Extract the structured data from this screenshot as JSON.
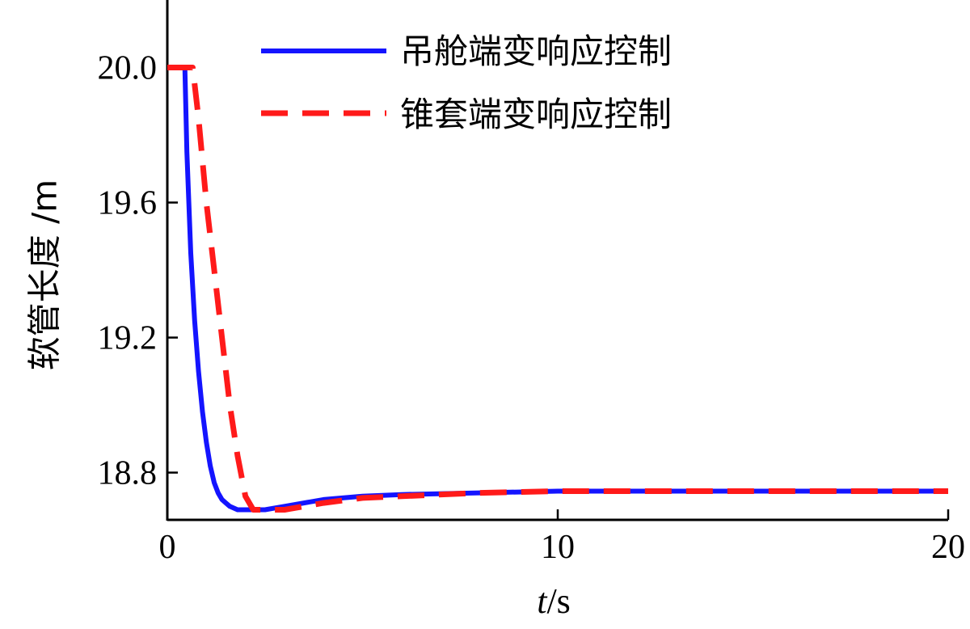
{
  "chart_data": {
    "type": "line",
    "title": "",
    "xlabel": {
      "var": "t",
      "sep": "/",
      "unit": "s"
    },
    "ylabel": "软管长度 /m",
    "xlim": [
      0,
      20
    ],
    "ylim": [
      18.66,
      20.2
    ],
    "xticks": [
      0,
      10,
      20
    ],
    "xtick_labels": [
      "0",
      "10",
      "20"
    ],
    "yticks": [
      18.8,
      19.2,
      19.6,
      20.0
    ],
    "ytick_labels": [
      "18.8",
      "19.2",
      "19.6",
      "20.0"
    ],
    "grid": false,
    "legend_position": "top-right",
    "series": [
      {
        "name": "吊舱端变响应控制",
        "color": "#1414ff",
        "style": "solid",
        "x": [
          0,
          0.45,
          0.5,
          0.6,
          0.7,
          0.8,
          0.9,
          1.0,
          1.1,
          1.2,
          1.3,
          1.4,
          1.5,
          1.6,
          1.8,
          2.0,
          2.5,
          3.0,
          4.0,
          5.0,
          6.0,
          8.0,
          10.0,
          12.0,
          15.0,
          18.0,
          20.0
        ],
        "y": [
          20.0,
          20.0,
          19.75,
          19.45,
          19.25,
          19.1,
          18.98,
          18.89,
          18.82,
          18.77,
          18.74,
          18.72,
          18.71,
          18.7,
          18.69,
          18.69,
          18.69,
          18.7,
          18.72,
          18.73,
          18.735,
          18.74,
          18.745,
          18.745,
          18.745,
          18.745,
          18.745
        ]
      },
      {
        "name": "锥套端变响应控制",
        "color": "#ff1a1a",
        "style": "dashed",
        "x": [
          0,
          0.65,
          0.8,
          1.0,
          1.2,
          1.4,
          1.6,
          1.8,
          2.0,
          2.2,
          2.5,
          3.0,
          4.0,
          5.0,
          6.0,
          8.0,
          10.0,
          12.0,
          15.0,
          18.0,
          20.0
        ],
        "y": [
          20.0,
          20.0,
          19.85,
          19.6,
          19.4,
          19.2,
          19.0,
          18.85,
          18.73,
          18.69,
          18.69,
          18.69,
          18.71,
          18.725,
          18.73,
          18.74,
          18.745,
          18.745,
          18.745,
          18.745,
          18.745
        ]
      }
    ]
  }
}
